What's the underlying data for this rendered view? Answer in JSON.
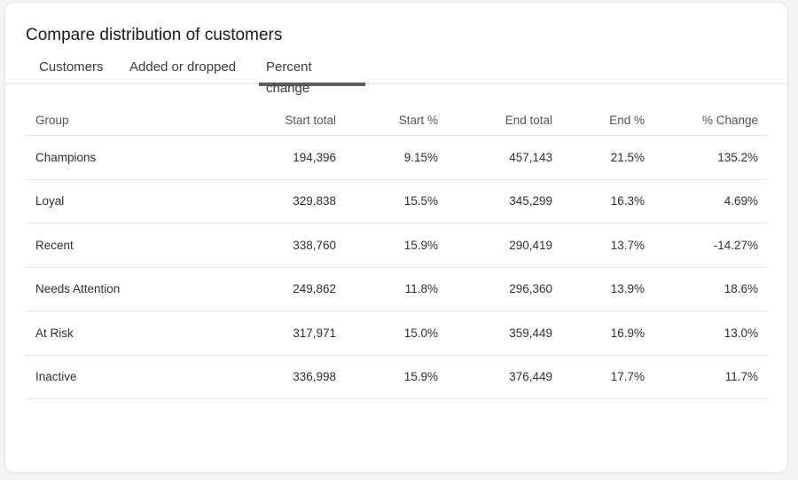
{
  "title": "Compare distribution of customers",
  "tabs": [
    {
      "label": "Customers",
      "active": false
    },
    {
      "label": "Added or dropped",
      "active": false
    },
    {
      "label": "Percent change",
      "active": true
    }
  ],
  "table": {
    "headers": [
      "Group",
      "Start total",
      "Start %",
      "End total",
      "End %",
      "% Change"
    ],
    "rows": [
      [
        "Champions",
        "194,396",
        "9.15%",
        "457,143",
        "21.5%",
        "135.2%"
      ],
      [
        "Loyal",
        "329,838",
        "15.5%",
        "345,299",
        "16.3%",
        "4.69%"
      ],
      [
        "Recent",
        "338,760",
        "15.9%",
        "290,419",
        "13.7%",
        "-14.27%"
      ],
      [
        "Needs Attention",
        "249,862",
        "11.8%",
        "296,360",
        "13.9%",
        "18.6%"
      ],
      [
        "At Risk",
        "317,971",
        "15.0%",
        "359,449",
        "16.9%",
        "13.0%"
      ],
      [
        "Inactive",
        "336,998",
        "15.9%",
        "376,449",
        "17.7%",
        "11.7%"
      ]
    ]
  }
}
